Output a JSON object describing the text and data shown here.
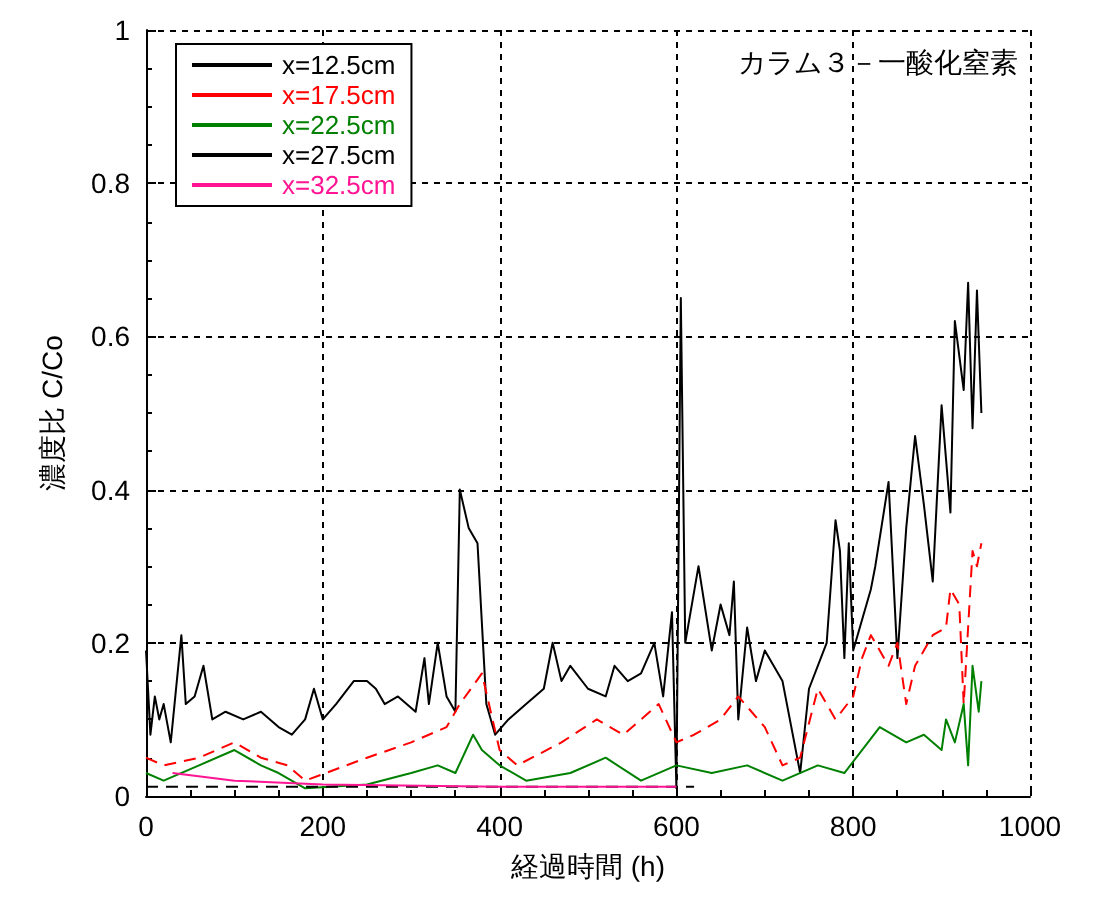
{
  "chart_data": {
    "type": "line",
    "xlabel": "経過時間 (h)",
    "ylabel": "濃度比 C/Co",
    "annotations": [
      "カラム３－一酸化窒素"
    ],
    "xlim": [
      0,
      1000
    ],
    "xticks": [
      0,
      200,
      400,
      600,
      800,
      1000
    ],
    "ylim": [
      0,
      1
    ],
    "yticks": [
      0,
      0.2,
      0.4,
      0.6,
      0.8,
      1
    ],
    "grid": true,
    "legend": "top left",
    "marker": "none",
    "series": [
      {
        "name": "x=12.5cm",
        "color": "#000000",
        "line_style": "solid",
        "x": [
          0,
          5,
          10,
          15,
          20,
          28,
          40,
          45,
          55,
          65,
          75,
          90,
          110,
          130,
          150,
          165,
          180,
          190,
          200,
          215,
          235,
          250,
          260,
          270,
          285,
          305,
          315,
          320,
          330,
          340,
          350,
          355,
          365,
          375,
          385,
          395,
          410,
          430,
          450,
          460,
          470,
          480,
          500,
          520,
          530,
          545,
          560,
          575,
          585,
          595,
          600,
          605,
          610,
          625,
          640,
          650,
          660,
          665,
          670,
          680,
          690,
          700,
          720,
          740,
          750,
          770,
          780,
          785,
          790,
          795,
          800,
          820,
          825,
          840,
          850,
          860,
          870,
          880,
          890,
          900,
          910,
          915,
          925,
          930,
          935,
          940,
          945
        ],
        "values": [
          0.19,
          0.08,
          0.13,
          0.1,
          0.12,
          0.07,
          0.21,
          0.12,
          0.13,
          0.17,
          0.1,
          0.11,
          0.1,
          0.11,
          0.09,
          0.08,
          0.1,
          0.14,
          0.1,
          0.12,
          0.15,
          0.15,
          0.14,
          0.12,
          0.13,
          0.11,
          0.18,
          0.12,
          0.2,
          0.13,
          0.11,
          0.4,
          0.35,
          0.33,
          0.12,
          0.08,
          0.1,
          0.12,
          0.14,
          0.2,
          0.15,
          0.17,
          0.14,
          0.13,
          0.17,
          0.15,
          0.16,
          0.2,
          0.13,
          0.24,
          0.01,
          0.65,
          0.2,
          0.3,
          0.19,
          0.25,
          0.21,
          0.28,
          0.1,
          0.22,
          0.15,
          0.19,
          0.15,
          0.03,
          0.14,
          0.2,
          0.36,
          0.32,
          0.18,
          0.33,
          0.19,
          0.27,
          0.3,
          0.41,
          0.18,
          0.35,
          0.47,
          0.38,
          0.28,
          0.51,
          0.37,
          0.62,
          0.53,
          0.67,
          0.48,
          0.66,
          0.5
        ]
      },
      {
        "name": "x=17.5cm",
        "color": "#ff0000",
        "line_style": "dashed",
        "x": [
          0,
          20,
          60,
          100,
          130,
          160,
          180,
          250,
          300,
          340,
          355,
          380,
          400,
          420,
          470,
          510,
          540,
          580,
          600,
          620,
          650,
          670,
          700,
          720,
          740,
          760,
          780,
          800,
          810,
          820,
          840,
          850,
          860,
          870,
          890,
          905,
          910,
          920,
          925,
          935,
          940,
          945
        ],
        "values": [
          0.05,
          0.04,
          0.05,
          0.07,
          0.05,
          0.04,
          0.02,
          0.05,
          0.07,
          0.09,
          0.12,
          0.16,
          0.06,
          0.04,
          0.07,
          0.1,
          0.08,
          0.12,
          0.07,
          0.08,
          0.1,
          0.13,
          0.09,
          0.04,
          0.05,
          0.14,
          0.1,
          0.13,
          0.18,
          0.21,
          0.17,
          0.2,
          0.12,
          0.17,
          0.21,
          0.22,
          0.27,
          0.25,
          0.12,
          0.32,
          0.3,
          0.33
        ]
      },
      {
        "name": "x=22.5cm",
        "color": "#008000",
        "line_style": "solid",
        "x": [
          0,
          20,
          60,
          100,
          130,
          150,
          180,
          250,
          300,
          330,
          350,
          370,
          380,
          400,
          430,
          480,
          520,
          560,
          600,
          640,
          680,
          720,
          760,
          790,
          810,
          830,
          860,
          880,
          900,
          905,
          915,
          925,
          930,
          935,
          942,
          945
        ],
        "values": [
          0.03,
          0.02,
          0.04,
          0.06,
          0.04,
          0.03,
          0.01,
          0.015,
          0.03,
          0.04,
          0.03,
          0.08,
          0.06,
          0.04,
          0.02,
          0.03,
          0.05,
          0.02,
          0.04,
          0.03,
          0.04,
          0.02,
          0.04,
          0.03,
          0.06,
          0.09,
          0.07,
          0.08,
          0.06,
          0.1,
          0.07,
          0.12,
          0.04,
          0.17,
          0.11,
          0.15
        ]
      },
      {
        "name": "x=27.5cm",
        "color": "#000000",
        "line_style": "dashed",
        "x": [
          0,
          200,
          400,
          620
        ],
        "values": [
          0.012,
          0.012,
          0.012,
          0.012
        ]
      },
      {
        "name": "x=32.5cm",
        "color": "#ff1493",
        "line_style": "solid",
        "x": [
          30,
          100,
          200,
          400,
          600
        ],
        "values": [
          0.03,
          0.02,
          0.015,
          0.012,
          0.012
        ]
      }
    ]
  }
}
